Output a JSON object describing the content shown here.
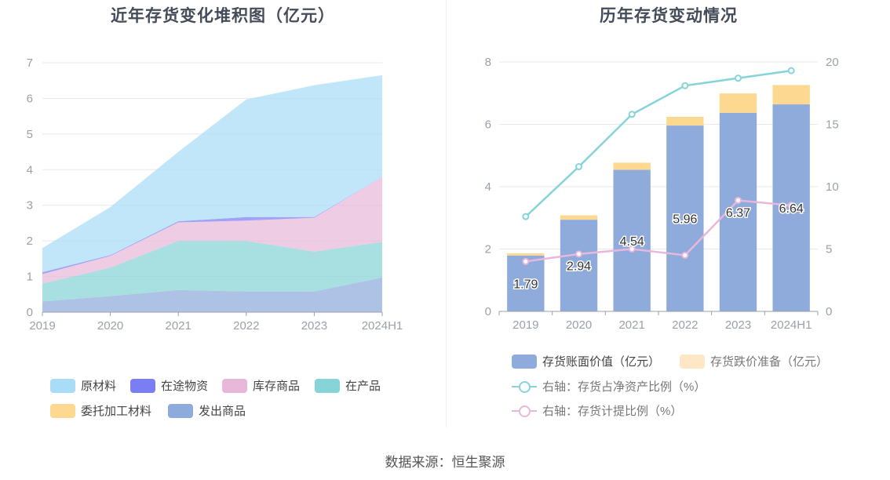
{
  "left_chart": {
    "title": "近年存货变化堆积图（亿元）",
    "legend": [
      {
        "name": "原材料",
        "color": "#a9ddf7"
      },
      {
        "name": "在途物资",
        "color": "#7a7ef2"
      },
      {
        "name": "库存商品",
        "color": "#e8b8da"
      },
      {
        "name": "在产品",
        "color": "#86d4d7"
      },
      {
        "name": "委托加工材料",
        "color": "#fdd890"
      },
      {
        "name": "发出商品",
        "color": "#8fabdc"
      }
    ]
  },
  "right_chart": {
    "title": "历年存货变动情况",
    "legend": [
      {
        "name": "存货账面价值（亿元）",
        "color": "#8fabdc",
        "kind": "bar"
      },
      {
        "name": "存货跌价准备（亿元）",
        "color": "#fde7c4",
        "kind": "bar"
      },
      {
        "name": "右轴：存货占净资产比例（%）",
        "color": "#86d4d7",
        "kind": "line"
      },
      {
        "name": "右轴：存货计提比例（%）",
        "color": "#e8b8da",
        "kind": "line"
      }
    ]
  },
  "source": "数据来源：恒生聚源",
  "chart_data": [
    {
      "type": "area",
      "stacked": true,
      "title": "近年存货变化堆积图（亿元）",
      "categories": [
        "2019",
        "2020",
        "2021",
        "2022",
        "2023",
        "2024H1"
      ],
      "ylim": [
        0,
        7
      ],
      "yticks": [
        0,
        1,
        2,
        3,
        4,
        5,
        6,
        7
      ],
      "grid": true,
      "legend_position": "bottom",
      "series": [
        {
          "name": "发出商品",
          "color": "#8fabdc",
          "values": [
            0.3,
            0.45,
            0.62,
            0.58,
            0.58,
            0.97
          ]
        },
        {
          "name": "委托加工材料",
          "color": "#fdd890",
          "values": [
            0.0,
            0.0,
            0.0,
            0.0,
            0.0,
            0.0
          ]
        },
        {
          "name": "在产品",
          "color": "#86d4d7",
          "values": [
            0.5,
            0.8,
            1.38,
            1.42,
            1.12,
            1.0
          ]
        },
        {
          "name": "库存商品",
          "color": "#e8b8da",
          "values": [
            0.27,
            0.33,
            0.52,
            0.57,
            0.95,
            1.83
          ]
        },
        {
          "name": "在途物资",
          "color": "#7a7ef2",
          "values": [
            0.05,
            0.02,
            0.03,
            0.1,
            0.02,
            0.0
          ]
        },
        {
          "name": "原材料",
          "color": "#a9ddf7",
          "values": [
            0.68,
            1.35,
            1.95,
            3.3,
            3.7,
            2.85
          ]
        }
      ]
    },
    {
      "type": "bar",
      "stacked": true,
      "title": "历年存货变动情况",
      "categories": [
        "2019",
        "2020",
        "2021",
        "2022",
        "2023",
        "2024H1"
      ],
      "ylim": [
        0,
        8
      ],
      "yticks": [
        0,
        2,
        4,
        6,
        8
      ],
      "y2lim": [
        0,
        20
      ],
      "y2ticks": [
        0,
        5,
        10,
        15,
        20
      ],
      "grid": true,
      "legend_position": "bottom",
      "series": [
        {
          "name": "存货账面价值（亿元）",
          "kind": "bar",
          "color": "#8fabdc",
          "values": [
            1.79,
            2.94,
            4.54,
            5.96,
            6.37,
            6.64
          ],
          "labels": [
            "1.79",
            "2.94",
            "4.54",
            "5.96",
            "6.37",
            "6.64"
          ]
        },
        {
          "name": "存货跌价准备（亿元）",
          "kind": "bar",
          "color": "#fdd890",
          "values": [
            0.07,
            0.14,
            0.23,
            0.28,
            0.62,
            0.62
          ]
        },
        {
          "name": "右轴：存货占净资产比例（%）",
          "kind": "line",
          "axis": "right",
          "color": "#86d4d7",
          "values": [
            7.6,
            11.6,
            15.8,
            18.1,
            18.7,
            19.3
          ]
        },
        {
          "name": "右轴：存货计提比例（%）",
          "kind": "line",
          "axis": "right",
          "color": "#e8b8da",
          "values": [
            4.0,
            4.6,
            5.0,
            4.5,
            8.9,
            8.5
          ]
        }
      ]
    }
  ]
}
